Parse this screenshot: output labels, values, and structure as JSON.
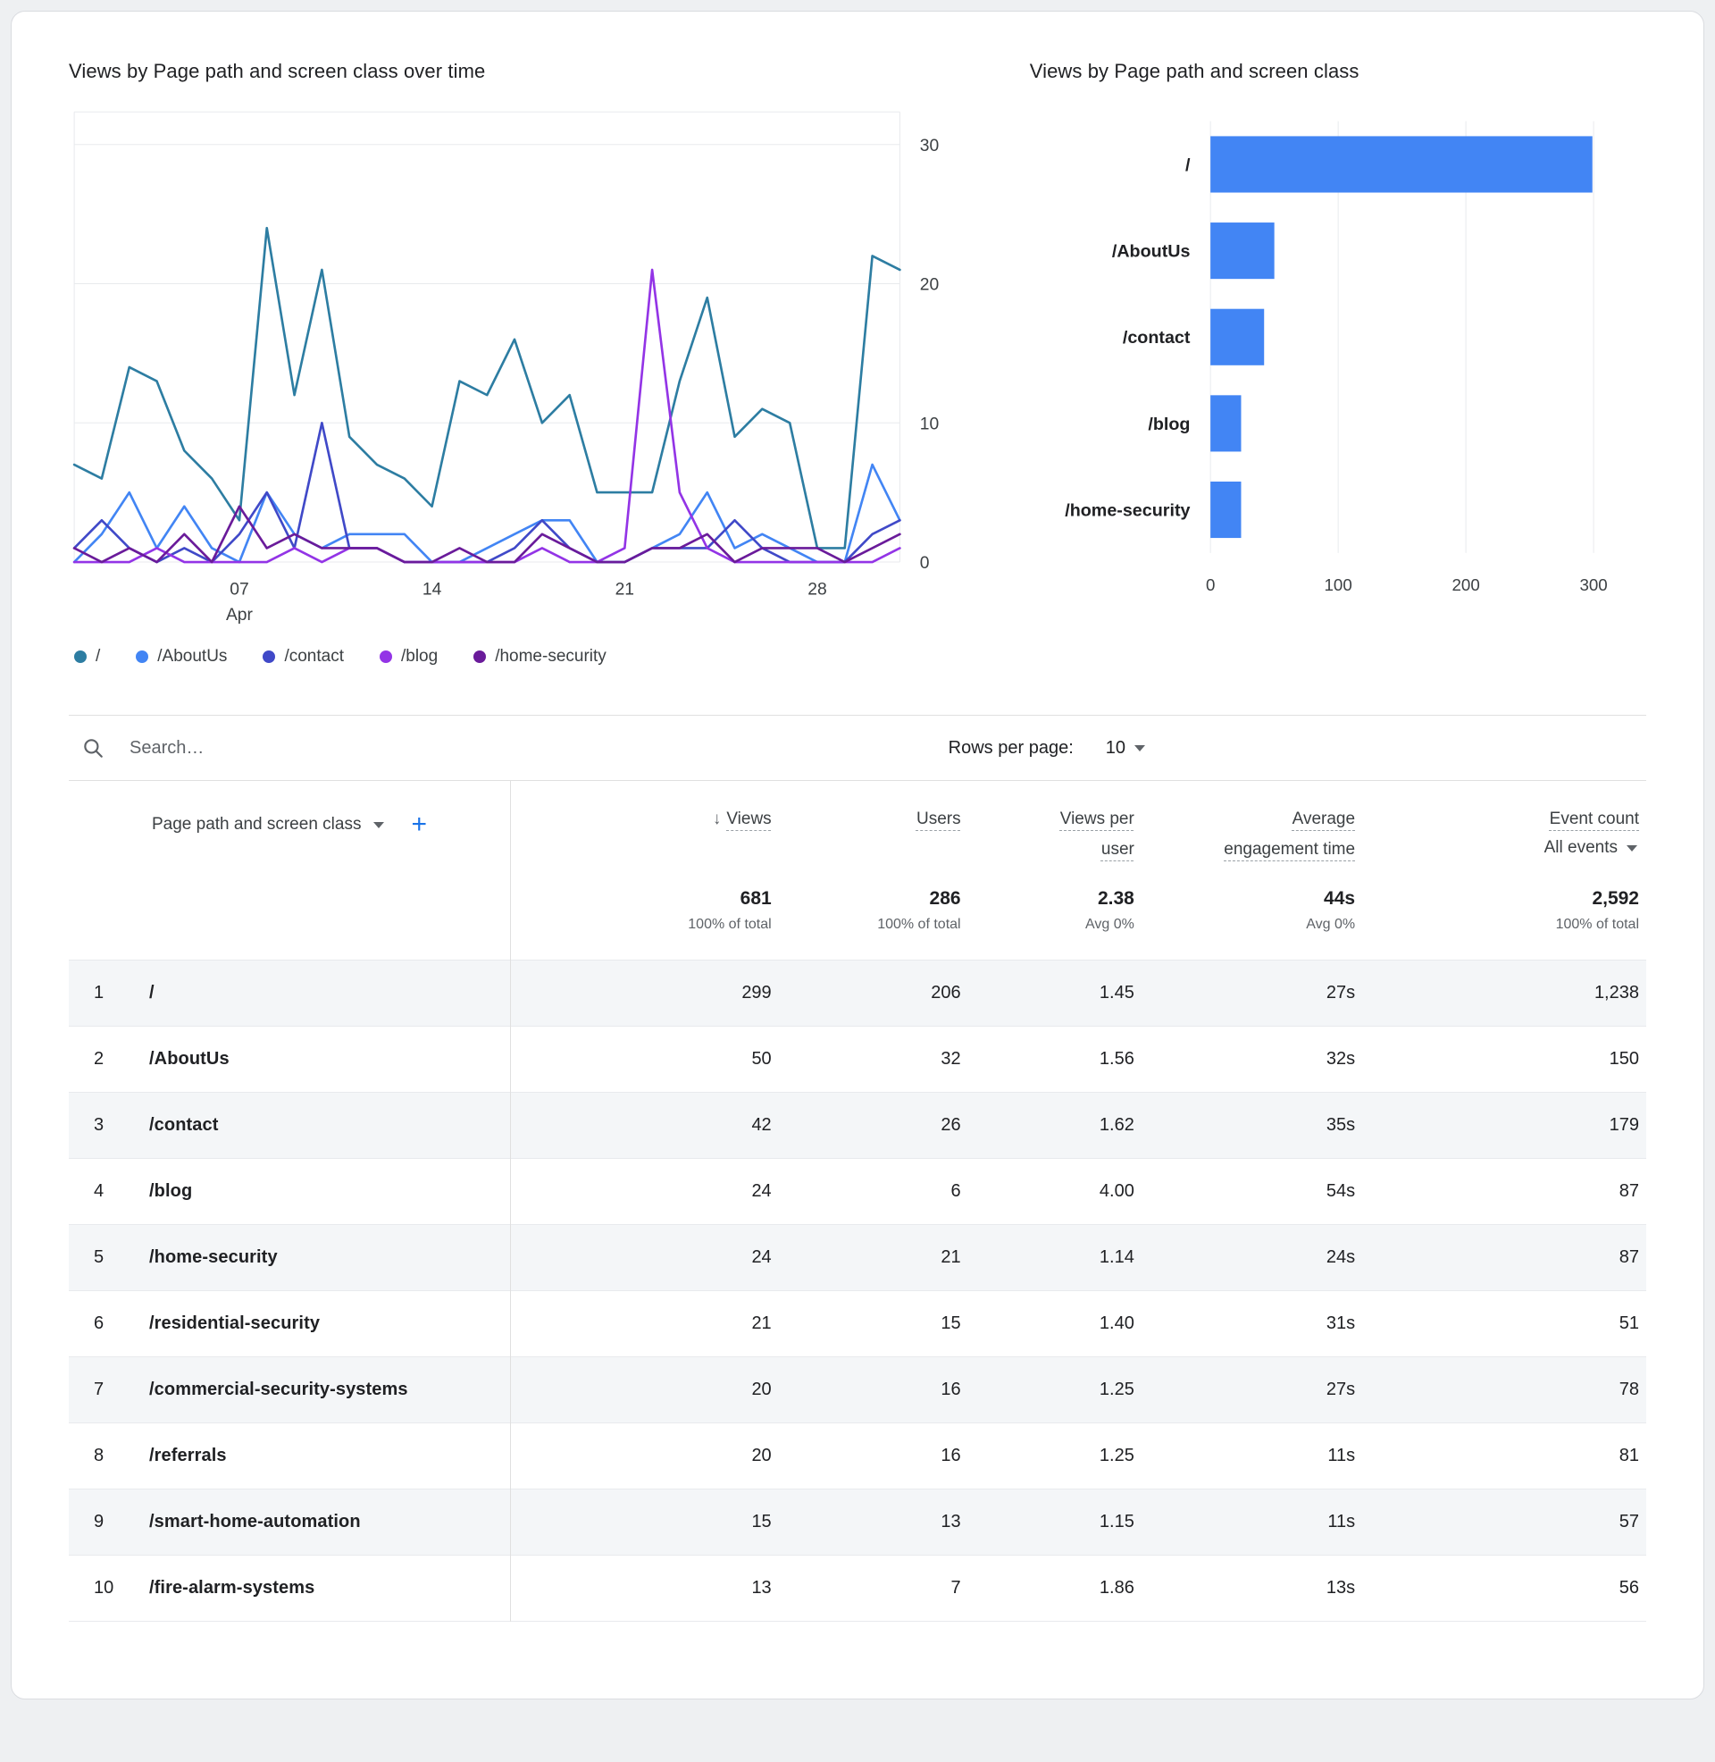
{
  "chart_data": [
    {
      "type": "line",
      "title": "Views by Page path and screen class over time",
      "x_unit": "day of month (April)",
      "x_ticks": [
        {
          "value": 7,
          "label": "07",
          "sublabel": "Apr"
        },
        {
          "value": 14,
          "label": "14"
        },
        {
          "value": 21,
          "label": "21"
        },
        {
          "value": 28,
          "label": "28"
        }
      ],
      "ylim": [
        0,
        30
      ],
      "y_ticks": [
        0,
        10,
        20,
        30
      ],
      "grid": true,
      "legend_position": "bottom",
      "series": [
        {
          "name": "/",
          "color": "#2d7da2",
          "values": [
            7,
            6,
            14,
            13,
            8,
            6,
            3,
            24,
            12,
            21,
            9,
            7,
            6,
            4,
            13,
            12,
            16,
            10,
            12,
            5,
            5,
            5,
            13,
            19,
            9,
            11,
            10,
            1,
            1,
            22,
            21
          ]
        },
        {
          "name": "/AboutUs",
          "color": "#4285f4",
          "values": [
            0,
            2,
            5,
            1,
            4,
            1,
            0,
            5,
            2,
            1,
            2,
            2,
            2,
            0,
            0,
            1,
            2,
            3,
            3,
            0,
            0,
            1,
            2,
            5,
            1,
            2,
            1,
            0,
            0,
            7,
            3
          ]
        },
        {
          "name": "/contact",
          "color": "#4049c8",
          "values": [
            1,
            3,
            1,
            0,
            1,
            0,
            2,
            5,
            1,
            10,
            1,
            1,
            0,
            0,
            0,
            0,
            1,
            3,
            1,
            0,
            0,
            1,
            1,
            1,
            3,
            1,
            0,
            0,
            0,
            2,
            3
          ]
        },
        {
          "name": "/blog",
          "color": "#9334e6",
          "values": [
            0,
            0,
            0,
            1,
            0,
            0,
            0,
            0,
            1,
            0,
            1,
            1,
            0,
            0,
            0,
            0,
            0,
            1,
            0,
            0,
            1,
            21,
            5,
            1,
            0,
            0,
            0,
            0,
            0,
            0,
            1
          ]
        },
        {
          "name": "/home-security",
          "color": "#6a1b9a",
          "values": [
            1,
            0,
            1,
            0,
            2,
            0,
            4,
            1,
            2,
            1,
            1,
            1,
            0,
            0,
            1,
            0,
            0,
            2,
            1,
            0,
            0,
            1,
            1,
            2,
            0,
            1,
            1,
            1,
            0,
            1,
            2
          ]
        }
      ]
    },
    {
      "type": "bar",
      "title": "Views by Page path and screen class",
      "orientation": "horizontal",
      "categories": [
        "/",
        "/AboutUs",
        "/contact",
        "/blog",
        "/home-security"
      ],
      "values": [
        299,
        50,
        42,
        24,
        24
      ],
      "bar_color": "#4285f4",
      "xlim": [
        0,
        300
      ],
      "x_ticks": [
        0,
        100,
        200,
        300
      ],
      "grid": true
    }
  ],
  "table": {
    "toolbar": {
      "search_placeholder": "Search…",
      "rows_per_page_label": "Rows per page:",
      "rows_per_page_value": "10"
    },
    "header": {
      "dimension": "Page path and screen class",
      "add_button": "+",
      "sort_arrow": "↓",
      "views": "Views",
      "users": "Users",
      "views_per_user": "Views per user",
      "avg_engagement_time": "Average engagement time",
      "event_count": "Event count",
      "event_filter": "All events"
    },
    "totals": {
      "views": "681",
      "views_sub": "100% of total",
      "users": "286",
      "users_sub": "100% of total",
      "views_per_user": "2.38",
      "views_per_user_sub": "Avg 0%",
      "avg_engagement_time": "44s",
      "avg_engagement_time_sub": "Avg 0%",
      "event_count": "2,592",
      "event_count_sub": "100% of total"
    },
    "rows": [
      {
        "index": "1",
        "path": "/",
        "views": "299",
        "users": "206",
        "views_per_user": "1.45",
        "avg_engagement_time": "27s",
        "event_count": "1,238"
      },
      {
        "index": "2",
        "path": "/AboutUs",
        "views": "50",
        "users": "32",
        "views_per_user": "1.56",
        "avg_engagement_time": "32s",
        "event_count": "150"
      },
      {
        "index": "3",
        "path": "/contact",
        "views": "42",
        "users": "26",
        "views_per_user": "1.62",
        "avg_engagement_time": "35s",
        "event_count": "179"
      },
      {
        "index": "4",
        "path": "/blog",
        "views": "24",
        "users": "6",
        "views_per_user": "4.00",
        "avg_engagement_time": "54s",
        "event_count": "87"
      },
      {
        "index": "5",
        "path": "/home-security",
        "views": "24",
        "users": "21",
        "views_per_user": "1.14",
        "avg_engagement_time": "24s",
        "event_count": "87"
      },
      {
        "index": "6",
        "path": "/residential-security",
        "views": "21",
        "users": "15",
        "views_per_user": "1.40",
        "avg_engagement_time": "31s",
        "event_count": "51"
      },
      {
        "index": "7",
        "path": "/commercial-security-systems",
        "views": "20",
        "users": "16",
        "views_per_user": "1.25",
        "avg_engagement_time": "27s",
        "event_count": "78"
      },
      {
        "index": "8",
        "path": "/referrals",
        "views": "20",
        "users": "16",
        "views_per_user": "1.25",
        "avg_engagement_time": "11s",
        "event_count": "81"
      },
      {
        "index": "9",
        "path": "/smart-home-automation",
        "views": "15",
        "users": "13",
        "views_per_user": "1.15",
        "avg_engagement_time": "11s",
        "event_count": "57"
      },
      {
        "index": "10",
        "path": "/fire-alarm-systems",
        "views": "13",
        "users": "7",
        "views_per_user": "1.86",
        "avg_engagement_time": "13s",
        "event_count": "56"
      }
    ]
  }
}
